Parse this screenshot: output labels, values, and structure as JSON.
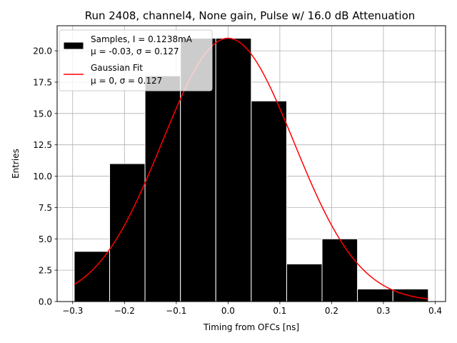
{
  "chart_data": {
    "type": "bar",
    "title": "Run 2408, channel4, None gain, Pulse w/ 16.0 dB Attenuation",
    "xlabel": "Timing from OFCs [ns]",
    "ylabel": "Entries",
    "xlim": [
      -0.33,
      0.42
    ],
    "ylim": [
      0,
      22
    ],
    "grid": true,
    "legend_position": "top-left",
    "bin_edges": [
      -0.297,
      -0.2286,
      -0.1603,
      -0.0919,
      -0.0236,
      0.0448,
      0.1132,
      0.1815,
      0.2499,
      0.3183,
      0.3866
    ],
    "values": [
      4,
      11,
      18,
      21,
      21,
      16,
      3,
      5,
      1,
      1
    ],
    "bar_color": "#000000",
    "bar_edge_color": "#ffffff",
    "fit": {
      "mu": 0.0,
      "sigma": 0.127,
      "amplitude": 21.0,
      "color": "#ff0000",
      "x_range": [
        -0.297,
        0.3866
      ]
    },
    "x_ticks": [
      {
        "value": -0.3,
        "label": "−0.3"
      },
      {
        "value": -0.2,
        "label": "−0.2"
      },
      {
        "value": -0.1,
        "label": "−0.1"
      },
      {
        "value": 0.0,
        "label": "0.0"
      },
      {
        "value": 0.1,
        "label": "0.1"
      },
      {
        "value": 0.2,
        "label": "0.2"
      },
      {
        "value": 0.3,
        "label": "0.3"
      },
      {
        "value": 0.4,
        "label": "0.4"
      }
    ],
    "y_ticks": [
      {
        "value": 0,
        "label": "0.0"
      },
      {
        "value": 2.5,
        "label": "2.5"
      },
      {
        "value": 5,
        "label": "5.0"
      },
      {
        "value": 7.5,
        "label": "7.5"
      },
      {
        "value": 10,
        "label": "10.0"
      },
      {
        "value": 12.5,
        "label": "12.5"
      },
      {
        "value": 15,
        "label": "15.0"
      },
      {
        "value": 17.5,
        "label": "17.5"
      },
      {
        "value": 20,
        "label": "20.0"
      }
    ],
    "legend": {
      "samples_line1": "Samples, I = 0.1238mA",
      "samples_line2": "μ = -0.03, σ = 0.127",
      "fit_line1": "Gaussian Fit",
      "fit_line2": "μ = 0, σ = 0.127"
    }
  }
}
